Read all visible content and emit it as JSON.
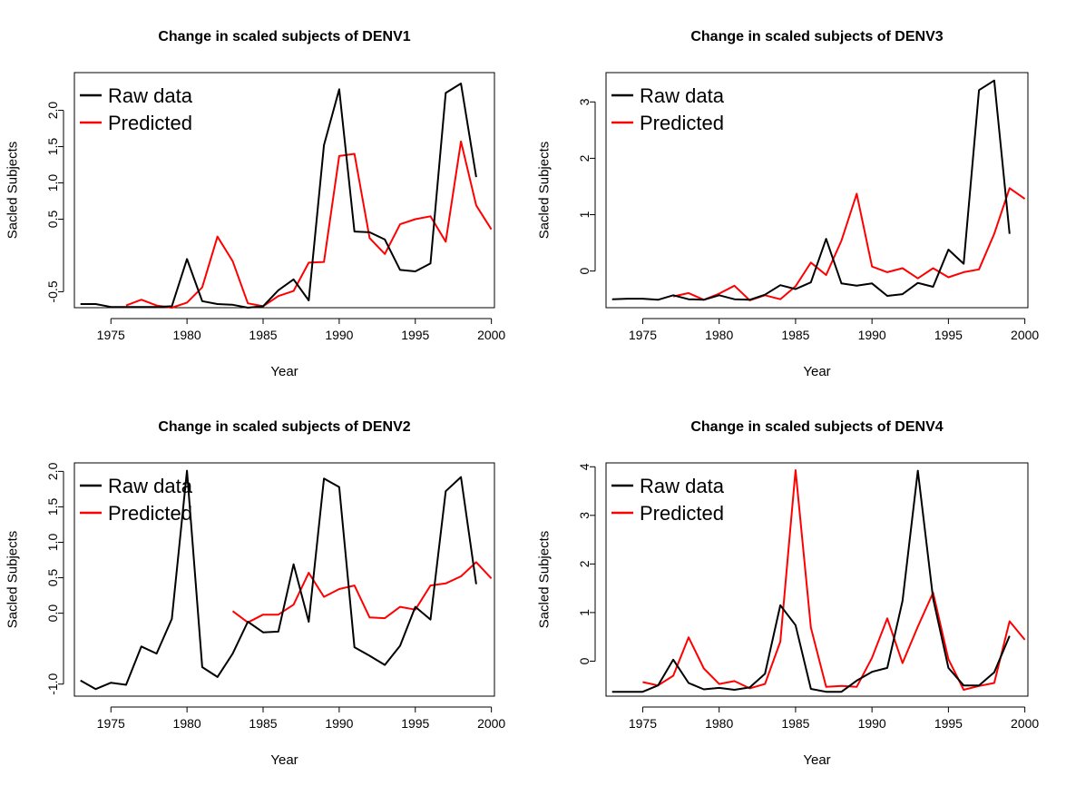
{
  "chart_data": [
    {
      "type": "line",
      "title": "Change in scaled subjects of DENV1",
      "xlabel": "Year",
      "ylabel": "Sacled Subjects",
      "xlim": [
        1972.6,
        2000.2
      ],
      "ylim": [
        -0.72,
        2.52
      ],
      "xticks": [
        "1975",
        "1980",
        "1985",
        "1990",
        "1995",
        "2000"
      ],
      "yticks": [
        "-0.5",
        "0.5",
        "1.0",
        "1.5",
        "2.0"
      ],
      "legend_position": "top-left",
      "series": [
        {
          "name": "Raw data",
          "color": "#000000",
          "x": [
            1973,
            1974,
            1975,
            1976,
            1977,
            1978,
            1979,
            1980,
            1981,
            1982,
            1983,
            1984,
            1985,
            1986,
            1987,
            1988,
            1989,
            1990,
            1991,
            1992,
            1993,
            1994,
            1995,
            1996,
            1997,
            1998,
            1999
          ],
          "values": [
            -0.67,
            -0.67,
            -0.71,
            -0.71,
            -0.71,
            -0.71,
            -0.7,
            -0.05,
            -0.63,
            -0.67,
            -0.68,
            -0.72,
            -0.7,
            -0.48,
            -0.33,
            -0.62,
            1.52,
            2.29,
            0.33,
            0.32,
            0.22,
            -0.2,
            -0.22,
            -0.11,
            2.24,
            2.37,
            1.08
          ]
        },
        {
          "name": "Predicted",
          "color": "#ff0000",
          "x": [
            1976,
            1977,
            1978,
            1979,
            1980,
            1981,
            1982,
            1983,
            1984,
            1985,
            1986,
            1987,
            1988,
            1989,
            1990,
            1991,
            1992,
            1993,
            1994,
            1995,
            1996,
            1997,
            1998,
            1999,
            2000
          ],
          "values": [
            -0.69,
            -0.61,
            -0.69,
            -0.72,
            -0.65,
            -0.44,
            0.26,
            -0.08,
            -0.66,
            -0.7,
            -0.56,
            -0.49,
            -0.1,
            -0.09,
            1.37,
            1.4,
            0.24,
            0.02,
            0.43,
            0.5,
            0.54,
            0.19,
            1.57,
            0.69,
            0.36
          ]
        }
      ]
    },
    {
      "type": "line",
      "title": "Change in scaled subjects of DENV3",
      "xlabel": "Year",
      "ylabel": "Sacled Subjects",
      "xlim": [
        1972.6,
        2000.2
      ],
      "ylim": [
        -0.65,
        3.52
      ],
      "xticks": [
        "1975",
        "1980",
        "1985",
        "1990",
        "1995",
        "2000"
      ],
      "yticks": [
        "0",
        "1",
        "2",
        "3"
      ],
      "legend_position": "top-left",
      "series": [
        {
          "name": "Raw data",
          "color": "#000000",
          "x": [
            1973,
            1974,
            1975,
            1976,
            1977,
            1978,
            1979,
            1980,
            1981,
            1982,
            1983,
            1984,
            1985,
            1986,
            1987,
            1988,
            1989,
            1990,
            1991,
            1992,
            1993,
            1994,
            1995,
            1996,
            1997,
            1998,
            1999
          ],
          "values": [
            -0.5,
            -0.49,
            -0.49,
            -0.51,
            -0.43,
            -0.5,
            -0.51,
            -0.43,
            -0.5,
            -0.51,
            -0.42,
            -0.25,
            -0.32,
            -0.2,
            0.57,
            -0.22,
            -0.26,
            -0.22,
            -0.44,
            -0.41,
            -0.21,
            -0.28,
            0.38,
            0.13,
            3.21,
            3.38,
            0.66
          ]
        },
        {
          "name": "Predicted",
          "color": "#ff0000",
          "x": [
            1977,
            1978,
            1979,
            1980,
            1981,
            1982,
            1983,
            1984,
            1985,
            1986,
            1987,
            1988,
            1989,
            1990,
            1991,
            1992,
            1993,
            1994,
            1995,
            1996,
            1997,
            1998,
            1999,
            2000
          ],
          "values": [
            -0.45,
            -0.39,
            -0.51,
            -0.4,
            -0.26,
            -0.52,
            -0.43,
            -0.5,
            -0.27,
            0.15,
            -0.07,
            0.54,
            1.37,
            0.08,
            -0.02,
            0.05,
            -0.13,
            0.05,
            -0.11,
            -0.02,
            0.03,
            0.66,
            1.47,
            1.28
          ]
        }
      ]
    },
    {
      "type": "line",
      "title": "Change in scaled subjects of DENV2",
      "xlabel": "Year",
      "ylabel": "Sacled Subjects",
      "xlim": [
        1972.6,
        2000.2
      ],
      "ylim": [
        -1.17,
        2.12
      ],
      "xticks": [
        "1975",
        "1980",
        "1985",
        "1990",
        "1995",
        "2000"
      ],
      "yticks": [
        "-1.0",
        "0.0",
        "0.5",
        "1.0",
        "1.5",
        "2.0"
      ],
      "legend_position": "top-left",
      "series": [
        {
          "name": "Raw data",
          "color": "#000000",
          "x": [
            1973,
            1974,
            1975,
            1976,
            1977,
            1978,
            1979,
            1980,
            1981,
            1982,
            1983,
            1984,
            1985,
            1986,
            1987,
            1988,
            1989,
            1990,
            1991,
            1992,
            1993,
            1994,
            1995,
            1996,
            1997,
            1998,
            1999
          ],
          "values": [
            -0.95,
            -1.07,
            -0.98,
            -1.01,
            -0.47,
            -0.57,
            -0.08,
            2.01,
            -0.76,
            -0.9,
            -0.57,
            -0.12,
            -0.27,
            -0.26,
            0.69,
            -0.12,
            1.9,
            1.78,
            -0.48,
            -0.6,
            -0.73,
            -0.46,
            0.09,
            -0.09,
            1.72,
            1.92,
            0.41
          ]
        },
        {
          "name": "Predicted",
          "color": "#ff0000",
          "x": [
            1983,
            1984,
            1985,
            1986,
            1987,
            1988,
            1989,
            1990,
            1991,
            1992,
            1993,
            1994,
            1995,
            1996,
            1997,
            1998,
            1999,
            2000
          ],
          "values": [
            0.03,
            -0.13,
            -0.02,
            -0.02,
            0.12,
            0.57,
            0.23,
            0.34,
            0.39,
            -0.06,
            -0.07,
            0.09,
            0.05,
            0.39,
            0.42,
            0.52,
            0.72,
            0.49
          ]
        }
      ]
    },
    {
      "type": "line",
      "title": "Change in scaled subjects of DENV4",
      "xlabel": "Year",
      "ylabel": "Sacled Subjects",
      "xlim": [
        1972.6,
        2000.2
      ],
      "ylim": [
        -0.72,
        4.08
      ],
      "xticks": [
        "1975",
        "1980",
        "1985",
        "1990",
        "1995",
        "2000"
      ],
      "yticks": [
        "0",
        "1",
        "2",
        "3",
        "4"
      ],
      "legend_position": "top-left",
      "series": [
        {
          "name": "Raw data",
          "color": "#000000",
          "x": [
            1973,
            1974,
            1975,
            1976,
            1977,
            1978,
            1979,
            1980,
            1981,
            1982,
            1983,
            1984,
            1985,
            1986,
            1987,
            1988,
            1989,
            1990,
            1991,
            1992,
            1993,
            1994,
            1995,
            1996,
            1997,
            1998,
            1999
          ],
          "values": [
            -0.63,
            -0.63,
            -0.63,
            -0.5,
            0.03,
            -0.45,
            -0.58,
            -0.55,
            -0.59,
            -0.54,
            -0.26,
            1.15,
            0.74,
            -0.57,
            -0.63,
            -0.63,
            -0.4,
            -0.22,
            -0.14,
            1.24,
            3.92,
            1.29,
            -0.14,
            -0.5,
            -0.5,
            -0.23,
            0.52
          ]
        },
        {
          "name": "Predicted",
          "color": "#ff0000",
          "x": [
            1975,
            1976,
            1977,
            1978,
            1979,
            1980,
            1981,
            1982,
            1983,
            1984,
            1985,
            1986,
            1987,
            1988,
            1989,
            1990,
            1991,
            1992,
            1993,
            1994,
            1995,
            1996,
            1997,
            1998,
            1999,
            2000
          ],
          "values": [
            -0.43,
            -0.5,
            -0.3,
            0.49,
            -0.15,
            -0.47,
            -0.41,
            -0.56,
            -0.47,
            0.4,
            3.93,
            0.69,
            -0.53,
            -0.51,
            -0.53,
            0.07,
            0.88,
            -0.04,
            0.71,
            1.41,
            0.04,
            -0.59,
            -0.51,
            -0.45,
            0.82,
            0.44
          ]
        }
      ]
    }
  ]
}
